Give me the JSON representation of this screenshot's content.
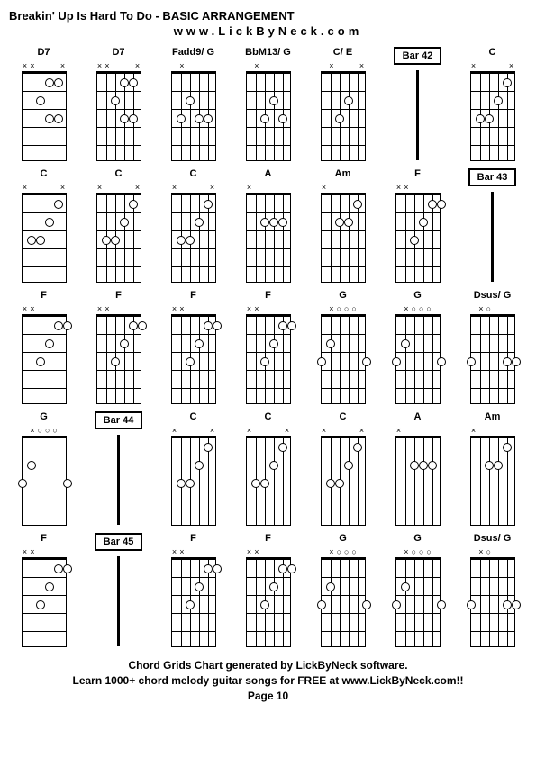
{
  "title": "Breakin' Up Is Hard To Do - BASIC ARRANGEMENT",
  "subtitle": "www.LickByNeck.com",
  "footer_line1": "Chord Grids Chart generated by LickByNeck software.",
  "footer_line2": "Learn 1000+ chord melody guitar songs for FREE at www.LickByNeck.com!!",
  "footer_line3": "Page 10",
  "frets": 5,
  "strings": 6,
  "cells": [
    {
      "type": "chord",
      "name": "D7",
      "markers": [
        "x",
        "x",
        "",
        "",
        "",
        "x"
      ],
      "dots": [
        [
          4,
          1
        ],
        [
          5,
          1
        ],
        [
          3,
          2
        ],
        [
          4,
          3
        ],
        [
          5,
          3
        ]
      ]
    },
    {
      "type": "chord",
      "name": "D7",
      "markers": [
        "x",
        "x",
        "",
        "",
        "",
        "x"
      ],
      "dots": [
        [
          4,
          1
        ],
        [
          5,
          1
        ],
        [
          3,
          2
        ],
        [
          4,
          3
        ],
        [
          5,
          3
        ]
      ]
    },
    {
      "type": "chord",
      "name": "Fadd9/ G",
      "markers": [
        "",
        "x",
        "",
        "",
        "",
        ""
      ],
      "dots": [
        [
          3,
          2
        ],
        [
          4,
          3
        ],
        [
          5,
          3
        ],
        [
          2,
          3
        ]
      ]
    },
    {
      "type": "chord",
      "name": "BbM13/ G",
      "markers": [
        "",
        "x",
        "",
        "",
        "",
        ""
      ],
      "dots": [
        [
          4,
          2
        ],
        [
          3,
          3
        ],
        [
          5,
          3
        ]
      ]
    },
    {
      "type": "chord",
      "name": "C/ E",
      "markers": [
        "",
        "x",
        "",
        "",
        "",
        "x"
      ],
      "dots": [
        [
          4,
          2
        ],
        [
          3,
          3
        ]
      ]
    },
    {
      "type": "bar",
      "label": "Bar 42"
    },
    {
      "type": "chord",
      "name": "C",
      "markers": [
        "x",
        "",
        "",
        "",
        "",
        "x"
      ],
      "dots": [
        [
          5,
          1
        ],
        [
          4,
          2
        ],
        [
          3,
          3
        ],
        [
          2,
          3
        ]
      ]
    },
    {
      "type": "chord",
      "name": "C",
      "markers": [
        "x",
        "",
        "",
        "",
        "",
        "x"
      ],
      "dots": [
        [
          5,
          1
        ],
        [
          4,
          2
        ],
        [
          3,
          3
        ],
        [
          2,
          3
        ]
      ]
    },
    {
      "type": "chord",
      "name": "C",
      "markers": [
        "x",
        "",
        "",
        "",
        "",
        "x"
      ],
      "dots": [
        [
          5,
          1
        ],
        [
          4,
          2
        ],
        [
          3,
          3
        ],
        [
          2,
          3
        ]
      ]
    },
    {
      "type": "chord",
      "name": "C",
      "markers": [
        "x",
        "",
        "",
        "",
        "",
        "x"
      ],
      "dots": [
        [
          5,
          1
        ],
        [
          4,
          2
        ],
        [
          3,
          3
        ],
        [
          2,
          3
        ]
      ]
    },
    {
      "type": "chord",
      "name": "A",
      "markers": [
        "x",
        "",
        "",
        "",
        "",
        ""
      ],
      "dots": [
        [
          3,
          2
        ],
        [
          4,
          2
        ],
        [
          5,
          2
        ]
      ]
    },
    {
      "type": "chord",
      "name": "Am",
      "markers": [
        "x",
        "",
        "",
        "",
        "",
        ""
      ],
      "dots": [
        [
          5,
          1
        ],
        [
          3,
          2
        ],
        [
          4,
          2
        ]
      ]
    },
    {
      "type": "chord",
      "name": "F",
      "markers": [
        "x",
        "x",
        "",
        "",
        "",
        ""
      ],
      "dots": [
        [
          5,
          1
        ],
        [
          6,
          1
        ],
        [
          4,
          2
        ],
        [
          3,
          3
        ]
      ]
    },
    {
      "type": "bar",
      "label": "Bar 43"
    },
    {
      "type": "chord",
      "name": "F",
      "markers": [
        "x",
        "x",
        "",
        "",
        "",
        ""
      ],
      "dots": [
        [
          5,
          1
        ],
        [
          6,
          1
        ],
        [
          4,
          2
        ],
        [
          3,
          3
        ]
      ]
    },
    {
      "type": "chord",
      "name": "F",
      "markers": [
        "x",
        "x",
        "",
        "",
        "",
        ""
      ],
      "dots": [
        [
          5,
          1
        ],
        [
          6,
          1
        ],
        [
          4,
          2
        ],
        [
          3,
          3
        ]
      ]
    },
    {
      "type": "chord",
      "name": "F",
      "markers": [
        "x",
        "x",
        "",
        "",
        "",
        ""
      ],
      "dots": [
        [
          5,
          1
        ],
        [
          6,
          1
        ],
        [
          4,
          2
        ],
        [
          3,
          3
        ]
      ]
    },
    {
      "type": "chord",
      "name": "F",
      "markers": [
        "x",
        "x",
        "",
        "",
        "",
        ""
      ],
      "dots": [
        [
          5,
          1
        ],
        [
          6,
          1
        ],
        [
          4,
          2
        ],
        [
          3,
          3
        ]
      ]
    },
    {
      "type": "chord",
      "name": "G",
      "markers": [
        "",
        "x",
        "o",
        "o",
        "o",
        ""
      ],
      "dots": [
        [
          2,
          2
        ],
        [
          1,
          3
        ],
        [
          6,
          3
        ]
      ]
    },
    {
      "type": "chord",
      "name": "G",
      "markers": [
        "",
        "x",
        "o",
        "o",
        "o",
        ""
      ],
      "dots": [
        [
          2,
          2
        ],
        [
          1,
          3
        ],
        [
          6,
          3
        ]
      ]
    },
    {
      "type": "chord",
      "name": "Dsus/ G",
      "markers": [
        "",
        "x",
        "o",
        "",
        "",
        ""
      ],
      "dots": [
        [
          1,
          3
        ],
        [
          5,
          3
        ],
        [
          6,
          3
        ]
      ]
    },
    {
      "type": "chord",
      "name": "G",
      "markers": [
        "",
        "x",
        "o",
        "o",
        "o",
        ""
      ],
      "dots": [
        [
          2,
          2
        ],
        [
          1,
          3
        ],
        [
          6,
          3
        ]
      ]
    },
    {
      "type": "bar",
      "label": "Bar 44"
    },
    {
      "type": "chord",
      "name": "C",
      "markers": [
        "x",
        "",
        "",
        "",
        "",
        "x"
      ],
      "dots": [
        [
          5,
          1
        ],
        [
          4,
          2
        ],
        [
          3,
          3
        ],
        [
          2,
          3
        ]
      ]
    },
    {
      "type": "chord",
      "name": "C",
      "markers": [
        "x",
        "",
        "",
        "",
        "",
        "x"
      ],
      "dots": [
        [
          5,
          1
        ],
        [
          4,
          2
        ],
        [
          3,
          3
        ],
        [
          2,
          3
        ]
      ]
    },
    {
      "type": "chord",
      "name": "C",
      "markers": [
        "x",
        "",
        "",
        "",
        "",
        "x"
      ],
      "dots": [
        [
          5,
          1
        ],
        [
          4,
          2
        ],
        [
          3,
          3
        ],
        [
          2,
          3
        ]
      ]
    },
    {
      "type": "chord",
      "name": "A",
      "markers": [
        "x",
        "",
        "",
        "",
        "",
        ""
      ],
      "dots": [
        [
          3,
          2
        ],
        [
          4,
          2
        ],
        [
          5,
          2
        ]
      ]
    },
    {
      "type": "chord",
      "name": "Am",
      "markers": [
        "x",
        "",
        "",
        "",
        "",
        ""
      ],
      "dots": [
        [
          5,
          1
        ],
        [
          3,
          2
        ],
        [
          4,
          2
        ]
      ]
    },
    {
      "type": "chord",
      "name": "F",
      "markers": [
        "x",
        "x",
        "",
        "",
        "",
        ""
      ],
      "dots": [
        [
          5,
          1
        ],
        [
          6,
          1
        ],
        [
          4,
          2
        ],
        [
          3,
          3
        ]
      ]
    },
    {
      "type": "bar",
      "label": "Bar 45"
    },
    {
      "type": "chord",
      "name": "F",
      "markers": [
        "x",
        "x",
        "",
        "",
        "",
        ""
      ],
      "dots": [
        [
          5,
          1
        ],
        [
          6,
          1
        ],
        [
          4,
          2
        ],
        [
          3,
          3
        ]
      ]
    },
    {
      "type": "chord",
      "name": "F",
      "markers": [
        "x",
        "x",
        "",
        "",
        "",
        ""
      ],
      "dots": [
        [
          5,
          1
        ],
        [
          6,
          1
        ],
        [
          4,
          2
        ],
        [
          3,
          3
        ]
      ]
    },
    {
      "type": "chord",
      "name": "G",
      "markers": [
        "",
        "x",
        "o",
        "o",
        "o",
        ""
      ],
      "dots": [
        [
          2,
          2
        ],
        [
          1,
          3
        ],
        [
          6,
          3
        ]
      ]
    },
    {
      "type": "chord",
      "name": "G",
      "markers": [
        "",
        "x",
        "o",
        "o",
        "o",
        ""
      ],
      "dots": [
        [
          2,
          2
        ],
        [
          1,
          3
        ],
        [
          6,
          3
        ]
      ]
    },
    {
      "type": "chord",
      "name": "Dsus/ G",
      "markers": [
        "",
        "x",
        "o",
        "",
        "",
        ""
      ],
      "dots": [
        [
          1,
          3
        ],
        [
          5,
          3
        ],
        [
          6,
          3
        ]
      ]
    }
  ]
}
